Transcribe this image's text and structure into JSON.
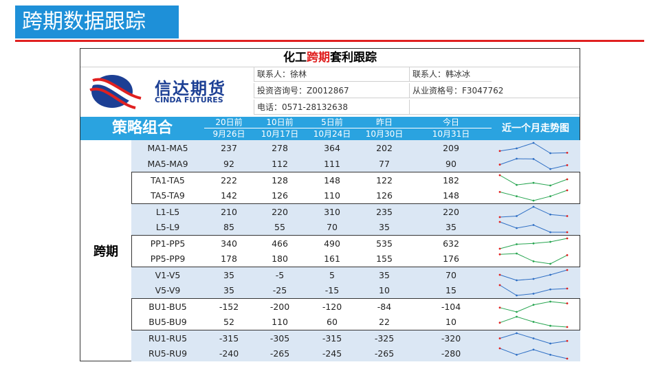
{
  "page": {
    "heading": "跨期数据跟踪"
  },
  "sheet": {
    "title_pre": "化工",
    "title_red": "跨期",
    "title_post": "套利跟踪",
    "brand": {
      "cn": "信达期货",
      "en": "CINDA FUTURES"
    },
    "contacts": {
      "contact1": "联系人：徐林",
      "consult_no": "投资咨询号：Z0012867",
      "phone": "电话：0571-28132638",
      "contact2": "联系人：韩冰冰",
      "license_no": "从业资格号：F3047762"
    },
    "header": {
      "combo": "策略组合",
      "trend": "近一个月走势图",
      "columns": [
        {
          "top": "20日前",
          "bottom": "9月26日"
        },
        {
          "top": "10日前",
          "bottom": "10月17日"
        },
        {
          "top": "5日前",
          "bottom": "10月24日"
        },
        {
          "top": "昨日",
          "bottom": "10月30日"
        },
        {
          "top": "今日",
          "bottom": "10月31日"
        }
      ]
    },
    "group": "跨期",
    "colors": {
      "accent": "#2aa3e0",
      "shade": "#dbe7f4",
      "spark_blue": "#2f6fc4",
      "spark_green": "#27a550",
      "spark_red": "#e02020"
    },
    "rows": [
      {
        "name": "MA1-MA5",
        "values": [
          "237",
          "278",
          "364",
          "202",
          "209"
        ]
      },
      {
        "name": "MA5-MA9",
        "values": [
          "92",
          "112",
          "111",
          "77",
          "90"
        ]
      },
      {
        "name": "TA1-TA5",
        "values": [
          "222",
          "128",
          "148",
          "122",
          "182"
        ]
      },
      {
        "name": "TA5-TA9",
        "values": [
          "142",
          "126",
          "110",
          "126",
          "148"
        ]
      },
      {
        "name": "L1-L5",
        "values": [
          "210",
          "220",
          "310",
          "235",
          "220"
        ]
      },
      {
        "name": "L5-L9",
        "values": [
          "85",
          "55",
          "70",
          "35",
          "35"
        ]
      },
      {
        "name": "PP1-PP5",
        "values": [
          "340",
          "466",
          "490",
          "535",
          "632"
        ]
      },
      {
        "name": "PP5-PP9",
        "values": [
          "178",
          "180",
          "161",
          "155",
          "176"
        ]
      },
      {
        "name": "V1-V5",
        "values": [
          "35",
          "-5",
          "5",
          "35",
          "70"
        ]
      },
      {
        "name": "V5-V9",
        "values": [
          "35",
          "-25",
          "-15",
          "10",
          "15"
        ]
      },
      {
        "name": "BU1-BU5",
        "values": [
          "-152",
          "-200",
          "-120",
          "-84",
          "-104"
        ]
      },
      {
        "name": "BU5-BU9",
        "values": [
          "52",
          "110",
          "60",
          "22",
          "10"
        ]
      },
      {
        "name": "RU1-RU5",
        "values": [
          "-315",
          "-305",
          "-315",
          "-325",
          "-320"
        ]
      },
      {
        "name": "RU5-RU9",
        "values": [
          "-240",
          "-265",
          "-245",
          "-265",
          "-280"
        ]
      }
    ]
  }
}
